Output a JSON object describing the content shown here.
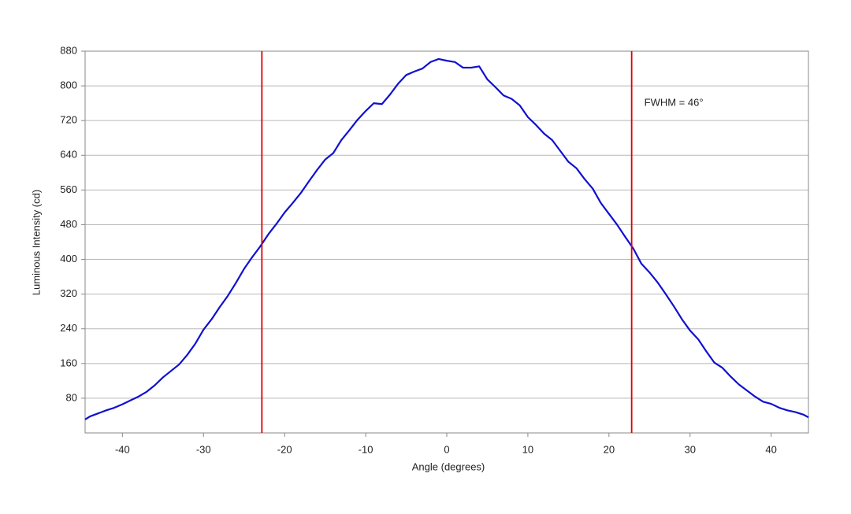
{
  "chart_data": {
    "type": "line",
    "xlabel": "Angle (degrees)",
    "ylabel": "Luminous Intensity (cd)",
    "x": [
      -44.6,
      -44,
      -43,
      -42,
      -41,
      -40,
      -39,
      -38,
      -37,
      -36,
      -35,
      -34,
      -33,
      -32,
      -31,
      -30,
      -29,
      -28,
      -27,
      -26,
      -25,
      -24,
      -23,
      -22,
      -21,
      -20,
      -19,
      -18,
      -17,
      -16,
      -15,
      -14,
      -13,
      -12,
      -11,
      -10,
      -9,
      -8,
      -7,
      -6,
      -5,
      -4,
      -3,
      -2,
      -1,
      0,
      1,
      2,
      3,
      4,
      5,
      6,
      7,
      8,
      9,
      10,
      11,
      12,
      13,
      14,
      15,
      16,
      17,
      18,
      19,
      20,
      21,
      22,
      23,
      24,
      25,
      26,
      27,
      28,
      29,
      30,
      31,
      32,
      33,
      34,
      35,
      36,
      37,
      38,
      39,
      40,
      41,
      42,
      43,
      44,
      44.6
    ],
    "series": [
      {
        "name": "Luminous Intensity",
        "color": "#1010d0",
        "values": [
          31,
          38,
          45,
          52,
          58,
          66,
          75,
          84,
          95,
          110,
          128,
          143,
          158,
          180,
          206,
          238,
          262,
          290,
          316,
          346,
          378,
          405,
          430,
          458,
          482,
          508,
          530,
          553,
          580,
          606,
          630,
          645,
          675,
          698,
          722,
          742,
          760,
          758,
          780,
          805,
          825,
          833,
          840,
          855,
          862,
          858,
          855,
          842,
          842,
          845,
          815,
          797,
          778,
          770,
          755,
          728,
          710,
          690,
          675,
          650,
          625,
          610,
          585,
          563,
          530,
          505,
          480,
          452,
          425,
          390,
          370,
          347,
          320,
          292,
          262,
          236,
          216,
          188,
          162,
          150,
          130,
          112,
          98,
          84,
          72,
          67,
          58,
          52,
          48,
          42,
          36
        ]
      }
    ],
    "xlim": [
      -44.6,
      44.6
    ],
    "xticks": [
      -40,
      -30,
      -20,
      -10,
      0,
      10,
      20,
      30,
      40
    ],
    "ylim": [
      0,
      880
    ],
    "yticks": [
      80,
      160,
      240,
      320,
      400,
      480,
      560,
      640,
      720,
      800,
      880
    ],
    "grid": true,
    "vlines": [
      {
        "value": -22.8,
        "color": "#e00000"
      },
      {
        "value": 22.8,
        "color": "#e00000"
      }
    ],
    "annotation": "FWHM = 46°"
  }
}
